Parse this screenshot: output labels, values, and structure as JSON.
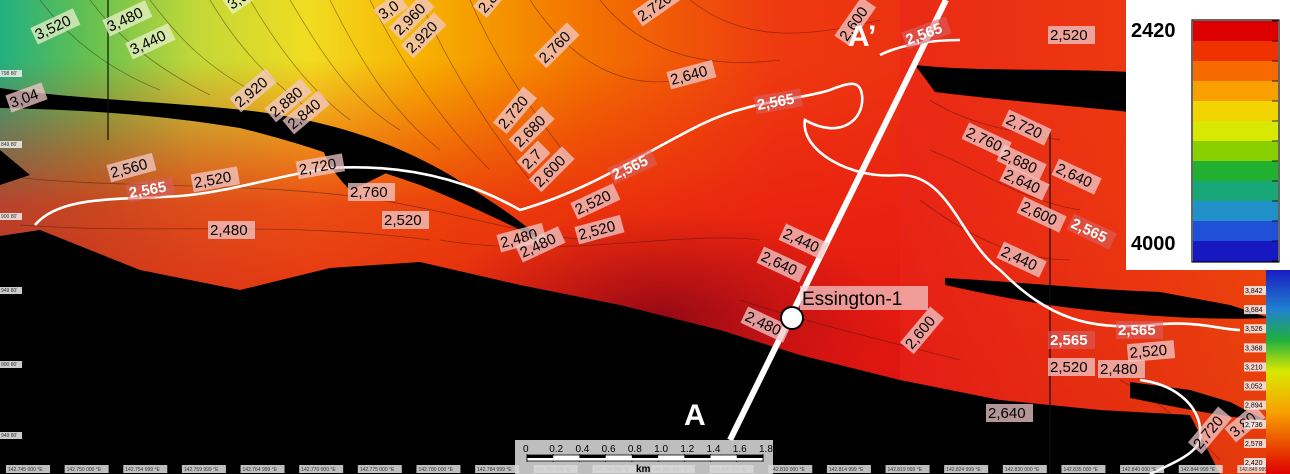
{
  "legend": {
    "max_label": "2420",
    "min_label": "4000",
    "colors": [
      "#dd0000",
      "#ee3300",
      "#f66a00",
      "#f8a000",
      "#f2d400",
      "#d8e800",
      "#8ad000",
      "#22b030",
      "#18a878",
      "#2090c8",
      "#2050d8",
      "#1818c0"
    ]
  },
  "section": {
    "start_label": "A",
    "end_label": "A’"
  },
  "well": {
    "name": "Essington-1"
  },
  "scalebar": {
    "unit": "km",
    "ticks": [
      "0",
      "0.2",
      "0.4",
      "0.6",
      "0.8",
      "1.0",
      "1.2",
      "1.4",
      "1.6",
      "1.8"
    ]
  },
  "contours": {
    "highlight_value": "2,565",
    "labels": [
      "3,520",
      "3,480",
      "3,440",
      "3,0",
      "3,0",
      "2,960",
      "2,920",
      "2,84",
      "2,760",
      "2,720",
      "2,600",
      "2,565",
      "2,520",
      "2,640",
      "3,04",
      "2,920",
      "2,880",
      "2,840",
      "2,565",
      "2,760",
      "2,720",
      "2,680",
      "2,640",
      "2,600",
      "2,640",
      "2,565",
      "2,560",
      "2,565",
      "2,520",
      "2,720",
      "2,760",
      "2,720",
      "2,680",
      "2,7",
      "2,600",
      "2,565",
      "2,520",
      "2,480",
      "2,520",
      "2,440",
      "2,480",
      "2,520",
      "2,480",
      "2,640",
      "2,600",
      "2,440",
      "2,480",
      "2,600",
      "2,565",
      "2,565",
      "2,520",
      "2,520",
      "2,480",
      "2,640",
      "2,720",
      "3,80"
    ]
  },
  "second_colorbar": {
    "labels": [
      "3,842",
      "3,684",
      "3,526",
      "3,368",
      "3,210",
      "3,052",
      "2,894",
      "2,736",
      "2,578",
      "2,420"
    ]
  },
  "grid": {
    "y_labels": [
      "798 80’",
      "849 80’",
      "900 80’",
      "949 80’",
      "900 80’",
      "949 80’"
    ],
    "x_labels": [
      "142.745 000 °E",
      "142.750 000 °E",
      "142.754 999 °E",
      "142.759 999 °E",
      "142.764 999 °E",
      "142.770 000 °E",
      "142.775 000 °E",
      "142.780 000 °E",
      "142.784 999 °E",
      "142.789 999 °E",
      "142.794 999 °E",
      "142.800 000 °E",
      "142.805 000 °E",
      "142.810 000 °E",
      "142.814 999 °E",
      "142.819 999 °E",
      "142.824 999 °E",
      "142.830 000 °E",
      "142.835 000 °E",
      "142.840 000 °E",
      "142.844 999 °E",
      "142.849 999 °E"
    ]
  }
}
